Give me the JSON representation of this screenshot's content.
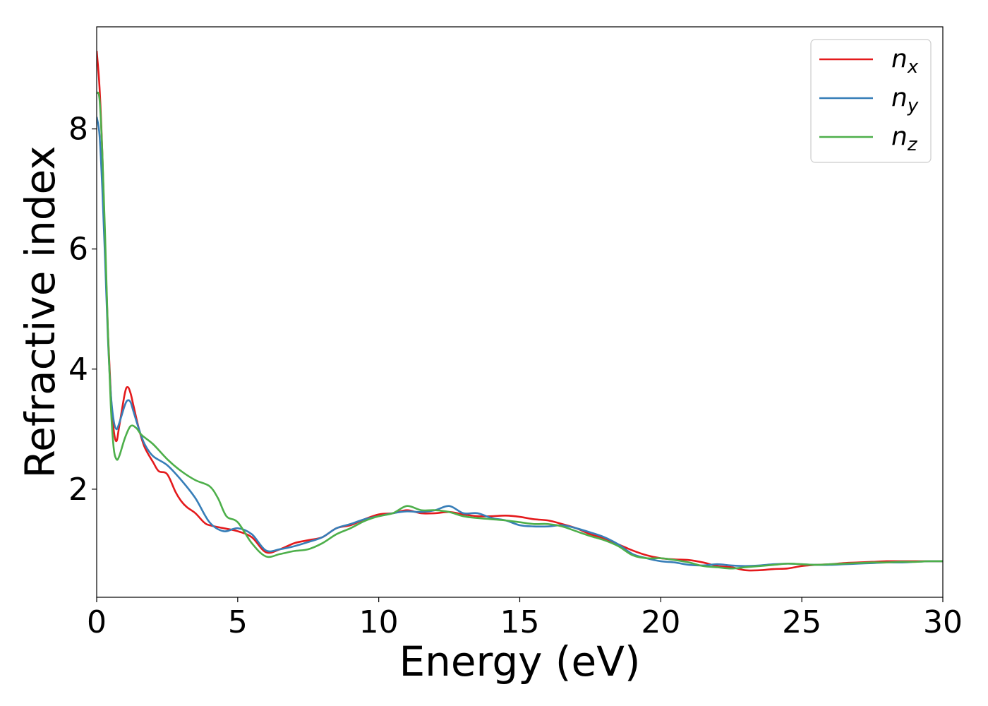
{
  "chart_data": {
    "type": "line",
    "xlabel": "Energy (eV)",
    "ylabel": "Refractive index",
    "xlim": [
      0,
      30
    ],
    "ylim": [
      0.2,
      9.7
    ],
    "xticks": [
      0,
      5,
      10,
      15,
      20,
      25,
      30
    ],
    "yticks": [
      2,
      4,
      6,
      8
    ],
    "grid": false,
    "legend_position": "top-right",
    "series": [
      {
        "name": "n_x",
        "label_base": "n",
        "label_sub": "x",
        "color": "#e41a1c",
        "x": [
          0,
          0.1,
          0.2,
          0.3,
          0.4,
          0.5,
          0.6,
          0.7,
          0.8,
          1.0,
          1.1,
          1.2,
          1.3,
          1.5,
          1.7,
          2.0,
          2.2,
          2.5,
          2.8,
          3.0,
          3.2,
          3.5,
          3.8,
          4.0,
          4.5,
          5.0,
          5.5,
          6.0,
          6.5,
          7.0,
          7.5,
          8.0,
          8.5,
          9.0,
          9.5,
          10.0,
          10.5,
          11.0,
          11.5,
          12.0,
          12.5,
          13.0,
          13.5,
          14.0,
          14.5,
          15.0,
          15.5,
          16.0,
          16.5,
          17.0,
          17.5,
          18.0,
          18.5,
          19.0,
          19.5,
          20.0,
          20.5,
          21.0,
          21.5,
          22.0,
          22.5,
          23.0,
          23.5,
          24.0,
          24.5,
          25.0,
          25.5,
          26.0,
          26.5,
          27.0,
          27.5,
          28.0,
          28.5,
          29.0,
          29.5,
          30.0
        ],
        "y": [
          9.3,
          8.7,
          7.6,
          6.0,
          4.6,
          3.6,
          3.0,
          2.8,
          3.05,
          3.6,
          3.7,
          3.6,
          3.4,
          3.0,
          2.7,
          2.45,
          2.3,
          2.25,
          1.95,
          1.8,
          1.7,
          1.6,
          1.45,
          1.4,
          1.35,
          1.3,
          1.2,
          0.95,
          1.0,
          1.1,
          1.15,
          1.2,
          1.35,
          1.4,
          1.5,
          1.58,
          1.6,
          1.65,
          1.6,
          1.6,
          1.62,
          1.58,
          1.55,
          1.55,
          1.56,
          1.54,
          1.5,
          1.48,
          1.42,
          1.35,
          1.25,
          1.18,
          1.08,
          0.98,
          0.9,
          0.85,
          0.83,
          0.82,
          0.78,
          0.72,
          0.7,
          0.65,
          0.65,
          0.67,
          0.68,
          0.72,
          0.74,
          0.75,
          0.77,
          0.78,
          0.79,
          0.8,
          0.8,
          0.8,
          0.8,
          0.8
        ]
      },
      {
        "name": "n_y",
        "label_base": "n",
        "label_sub": "y",
        "color": "#377eb8",
        "x": [
          0,
          0.1,
          0.2,
          0.3,
          0.4,
          0.5,
          0.6,
          0.7,
          0.8,
          1.0,
          1.1,
          1.2,
          1.3,
          1.5,
          1.7,
          2.0,
          2.5,
          3.0,
          3.5,
          4.0,
          4.5,
          5.0,
          5.5,
          6.0,
          6.5,
          7.0,
          7.5,
          8.0,
          8.5,
          9.0,
          9.5,
          10.0,
          10.5,
          11.0,
          11.5,
          12.0,
          12.5,
          13.0,
          13.5,
          14.0,
          14.5,
          15.0,
          15.5,
          16.0,
          16.5,
          17.0,
          17.5,
          18.0,
          18.5,
          19.0,
          19.5,
          20.0,
          20.5,
          21.0,
          21.5,
          22.0,
          22.5,
          23.0,
          23.5,
          24.0,
          24.5,
          25.0,
          25.5,
          26.0,
          26.5,
          27.0,
          27.5,
          28.0,
          28.5,
          29.0,
          29.5,
          30.0
        ],
        "y": [
          8.2,
          7.9,
          7.0,
          5.8,
          4.5,
          3.6,
          3.15,
          3.0,
          3.1,
          3.4,
          3.48,
          3.45,
          3.3,
          3.0,
          2.75,
          2.55,
          2.4,
          2.15,
          1.85,
          1.45,
          1.3,
          1.35,
          1.25,
          0.98,
          1.0,
          1.05,
          1.12,
          1.2,
          1.35,
          1.42,
          1.5,
          1.55,
          1.6,
          1.63,
          1.62,
          1.65,
          1.72,
          1.6,
          1.6,
          1.52,
          1.48,
          1.4,
          1.38,
          1.38,
          1.4,
          1.35,
          1.28,
          1.2,
          1.08,
          0.92,
          0.85,
          0.8,
          0.78,
          0.74,
          0.73,
          0.75,
          0.73,
          0.72,
          0.73,
          0.75,
          0.76,
          0.75,
          0.74,
          0.74,
          0.75,
          0.76,
          0.77,
          0.78,
          0.78,
          0.79,
          0.8,
          0.8
        ]
      },
      {
        "name": "n_z",
        "label_base": "n",
        "label_sub": "z",
        "color": "#4daf4a",
        "x": [
          0,
          0.1,
          0.2,
          0.3,
          0.4,
          0.5,
          0.6,
          0.7,
          0.8,
          1.0,
          1.2,
          1.4,
          1.6,
          2.0,
          2.5,
          3.0,
          3.5,
          4.0,
          4.3,
          4.6,
          5.0,
          5.5,
          6.0,
          6.5,
          7.0,
          7.5,
          8.0,
          8.5,
          9.0,
          9.5,
          10.0,
          10.5,
          11.0,
          11.5,
          12.0,
          12.5,
          13.0,
          13.5,
          14.0,
          14.5,
          15.0,
          15.5,
          16.0,
          16.5,
          17.0,
          17.5,
          18.0,
          18.5,
          19.0,
          19.5,
          20.0,
          20.5,
          21.0,
          21.5,
          22.0,
          22.5,
          23.0,
          23.5,
          24.0,
          24.5,
          25.0,
          25.5,
          26.0,
          26.5,
          27.0,
          27.5,
          28.0,
          28.5,
          29.0,
          29.5,
          30.0
        ],
        "y": [
          8.6,
          8.5,
          7.6,
          6.2,
          4.6,
          3.4,
          2.7,
          2.5,
          2.55,
          2.85,
          3.05,
          3.02,
          2.9,
          2.75,
          2.5,
          2.3,
          2.15,
          2.05,
          1.85,
          1.55,
          1.45,
          1.1,
          0.88,
          0.92,
          0.97,
          1.0,
          1.1,
          1.25,
          1.35,
          1.47,
          1.55,
          1.6,
          1.72,
          1.65,
          1.65,
          1.62,
          1.55,
          1.52,
          1.5,
          1.48,
          1.45,
          1.42,
          1.42,
          1.38,
          1.3,
          1.22,
          1.15,
          1.05,
          0.9,
          0.85,
          0.85,
          0.82,
          0.78,
          0.72,
          0.7,
          0.68,
          0.7,
          0.72,
          0.74,
          0.76,
          0.75,
          0.74,
          0.75,
          0.76,
          0.77,
          0.78,
          0.78,
          0.79,
          0.79,
          0.8,
          0.8
        ]
      }
    ]
  }
}
